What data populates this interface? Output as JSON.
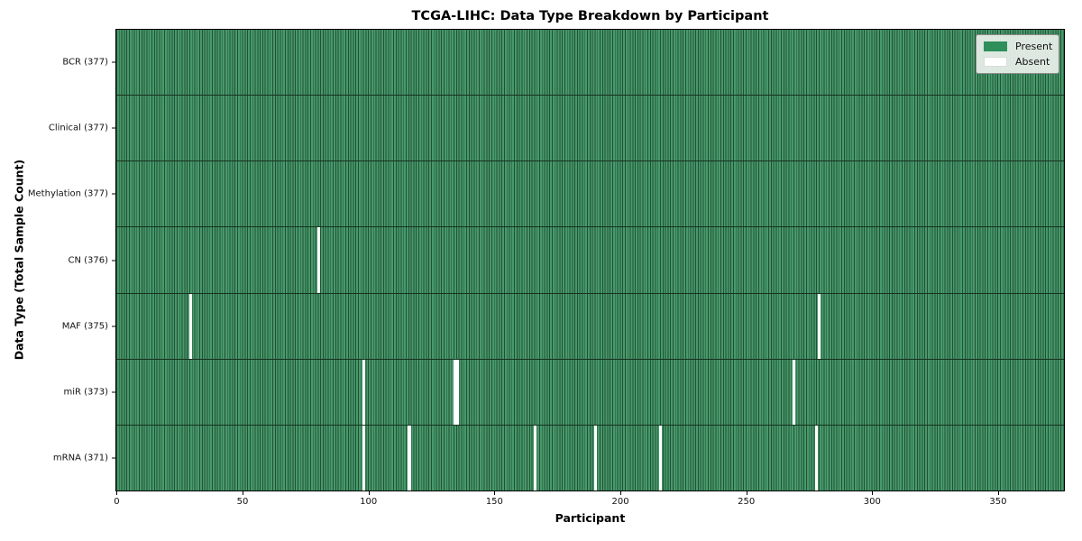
{
  "chart_data": {
    "type": "heatmap",
    "title": "TCGA-LIHC: Data Type Breakdown by Participant",
    "xlabel": "Participant",
    "ylabel": "Data Type (Total Sample Count)",
    "x_ticks": [
      0,
      50,
      100,
      150,
      200,
      250,
      300,
      350
    ],
    "x_range": [
      -0.5,
      376.5
    ],
    "n_participants": 377,
    "grid": "cell-edge-lines",
    "legend": {
      "position": "upper right",
      "items": [
        {
          "label": "Present",
          "color": "#2e8f5b"
        },
        {
          "label": "Absent",
          "color": "#ffffff"
        }
      ]
    },
    "rows": [
      {
        "data_type": "BCR",
        "total": 377,
        "label": "BCR (377)",
        "absent_participants": []
      },
      {
        "data_type": "Clinical",
        "total": 377,
        "label": "Clinical (377)",
        "absent_participants": []
      },
      {
        "data_type": "Methylation",
        "total": 377,
        "label": "Methylation (377)",
        "absent_participants": []
      },
      {
        "data_type": "CN",
        "total": 376,
        "label": "CN (376)",
        "absent_participants": [
          80
        ]
      },
      {
        "data_type": "MAF",
        "total": 375,
        "label": "MAF (375)",
        "absent_participants": [
          29,
          279
        ]
      },
      {
        "data_type": "miR",
        "total": 373,
        "label": "miR (373)",
        "absent_participants": [
          98,
          134,
          135,
          269
        ]
      },
      {
        "data_type": "mRNA",
        "total": 371,
        "label": "mRNA (371)",
        "absent_participants": [
          98,
          116,
          166,
          190,
          216,
          278
        ]
      }
    ],
    "colors": {
      "present_fill": "#48996b",
      "cell_grid_line": "#215134",
      "row_divider": "#17321f",
      "absent_fill": "#ffffff",
      "plot_border": "#000000",
      "figure_background": "#ffffff",
      "legend_background": "#ecf1ec"
    }
  }
}
